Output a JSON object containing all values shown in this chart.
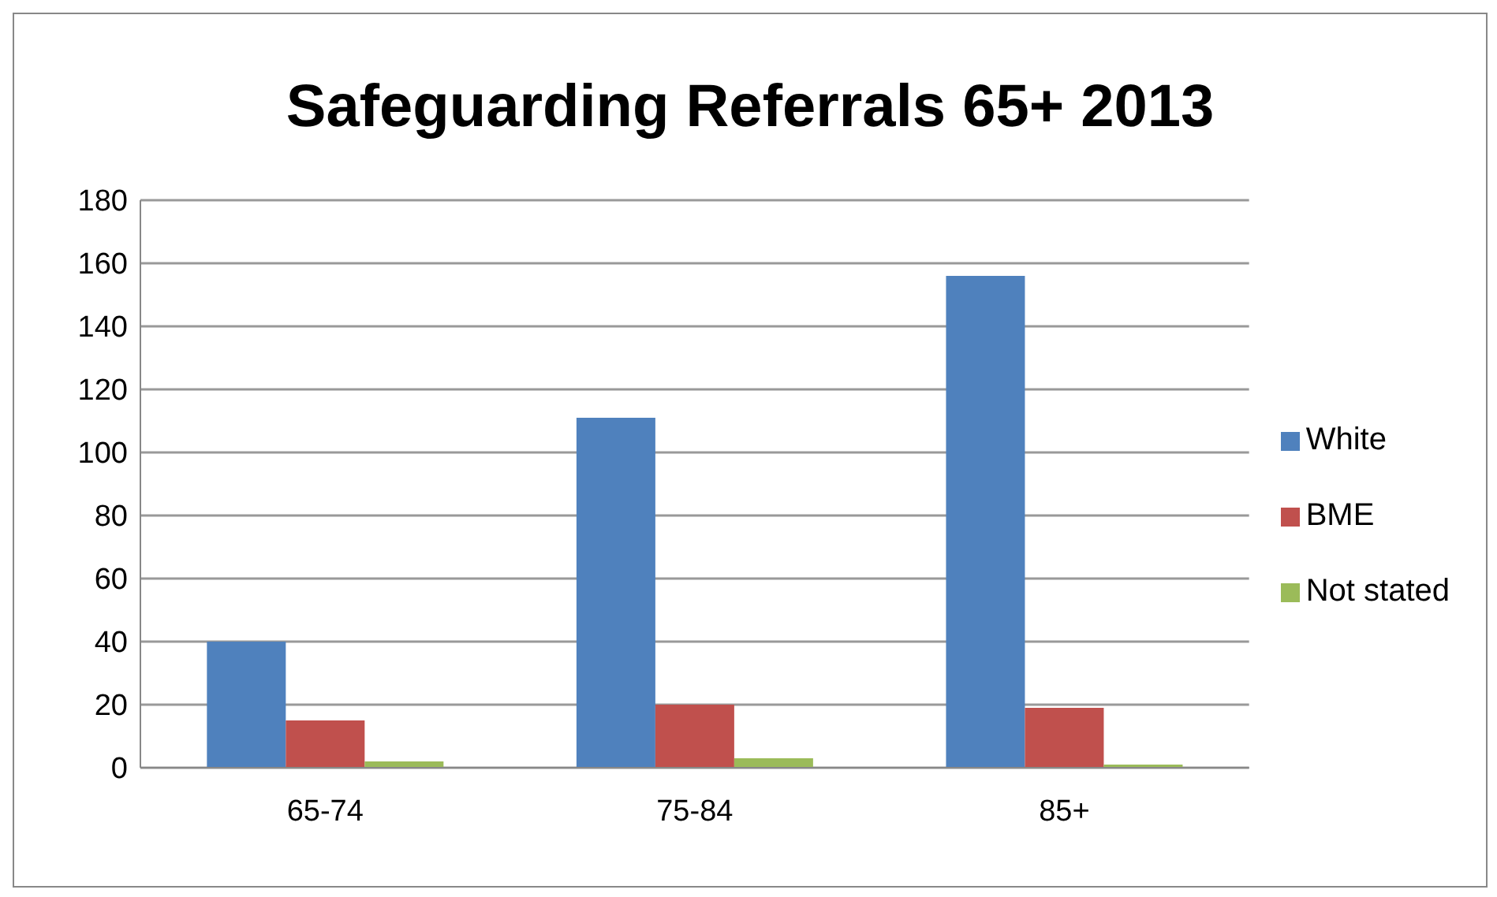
{
  "chart_data": {
    "type": "bar",
    "title": "Safeguarding Referrals 65+ 2013",
    "categories": [
      "65-74",
      "75-84",
      "85+"
    ],
    "series": [
      {
        "name": "White",
        "color": "#4f81bd",
        "values": [
          40,
          111,
          156
        ]
      },
      {
        "name": "BME",
        "color": "#c0504d",
        "values": [
          15,
          20,
          19
        ]
      },
      {
        "name": "Not stated",
        "color": "#9bbb59",
        "values": [
          2,
          3,
          1
        ]
      }
    ],
    "ylim": [
      0,
      180
    ],
    "yticks": [
      0,
      20,
      40,
      60,
      80,
      100,
      120,
      140,
      160,
      180
    ],
    "grid": "y",
    "legend": "right"
  }
}
